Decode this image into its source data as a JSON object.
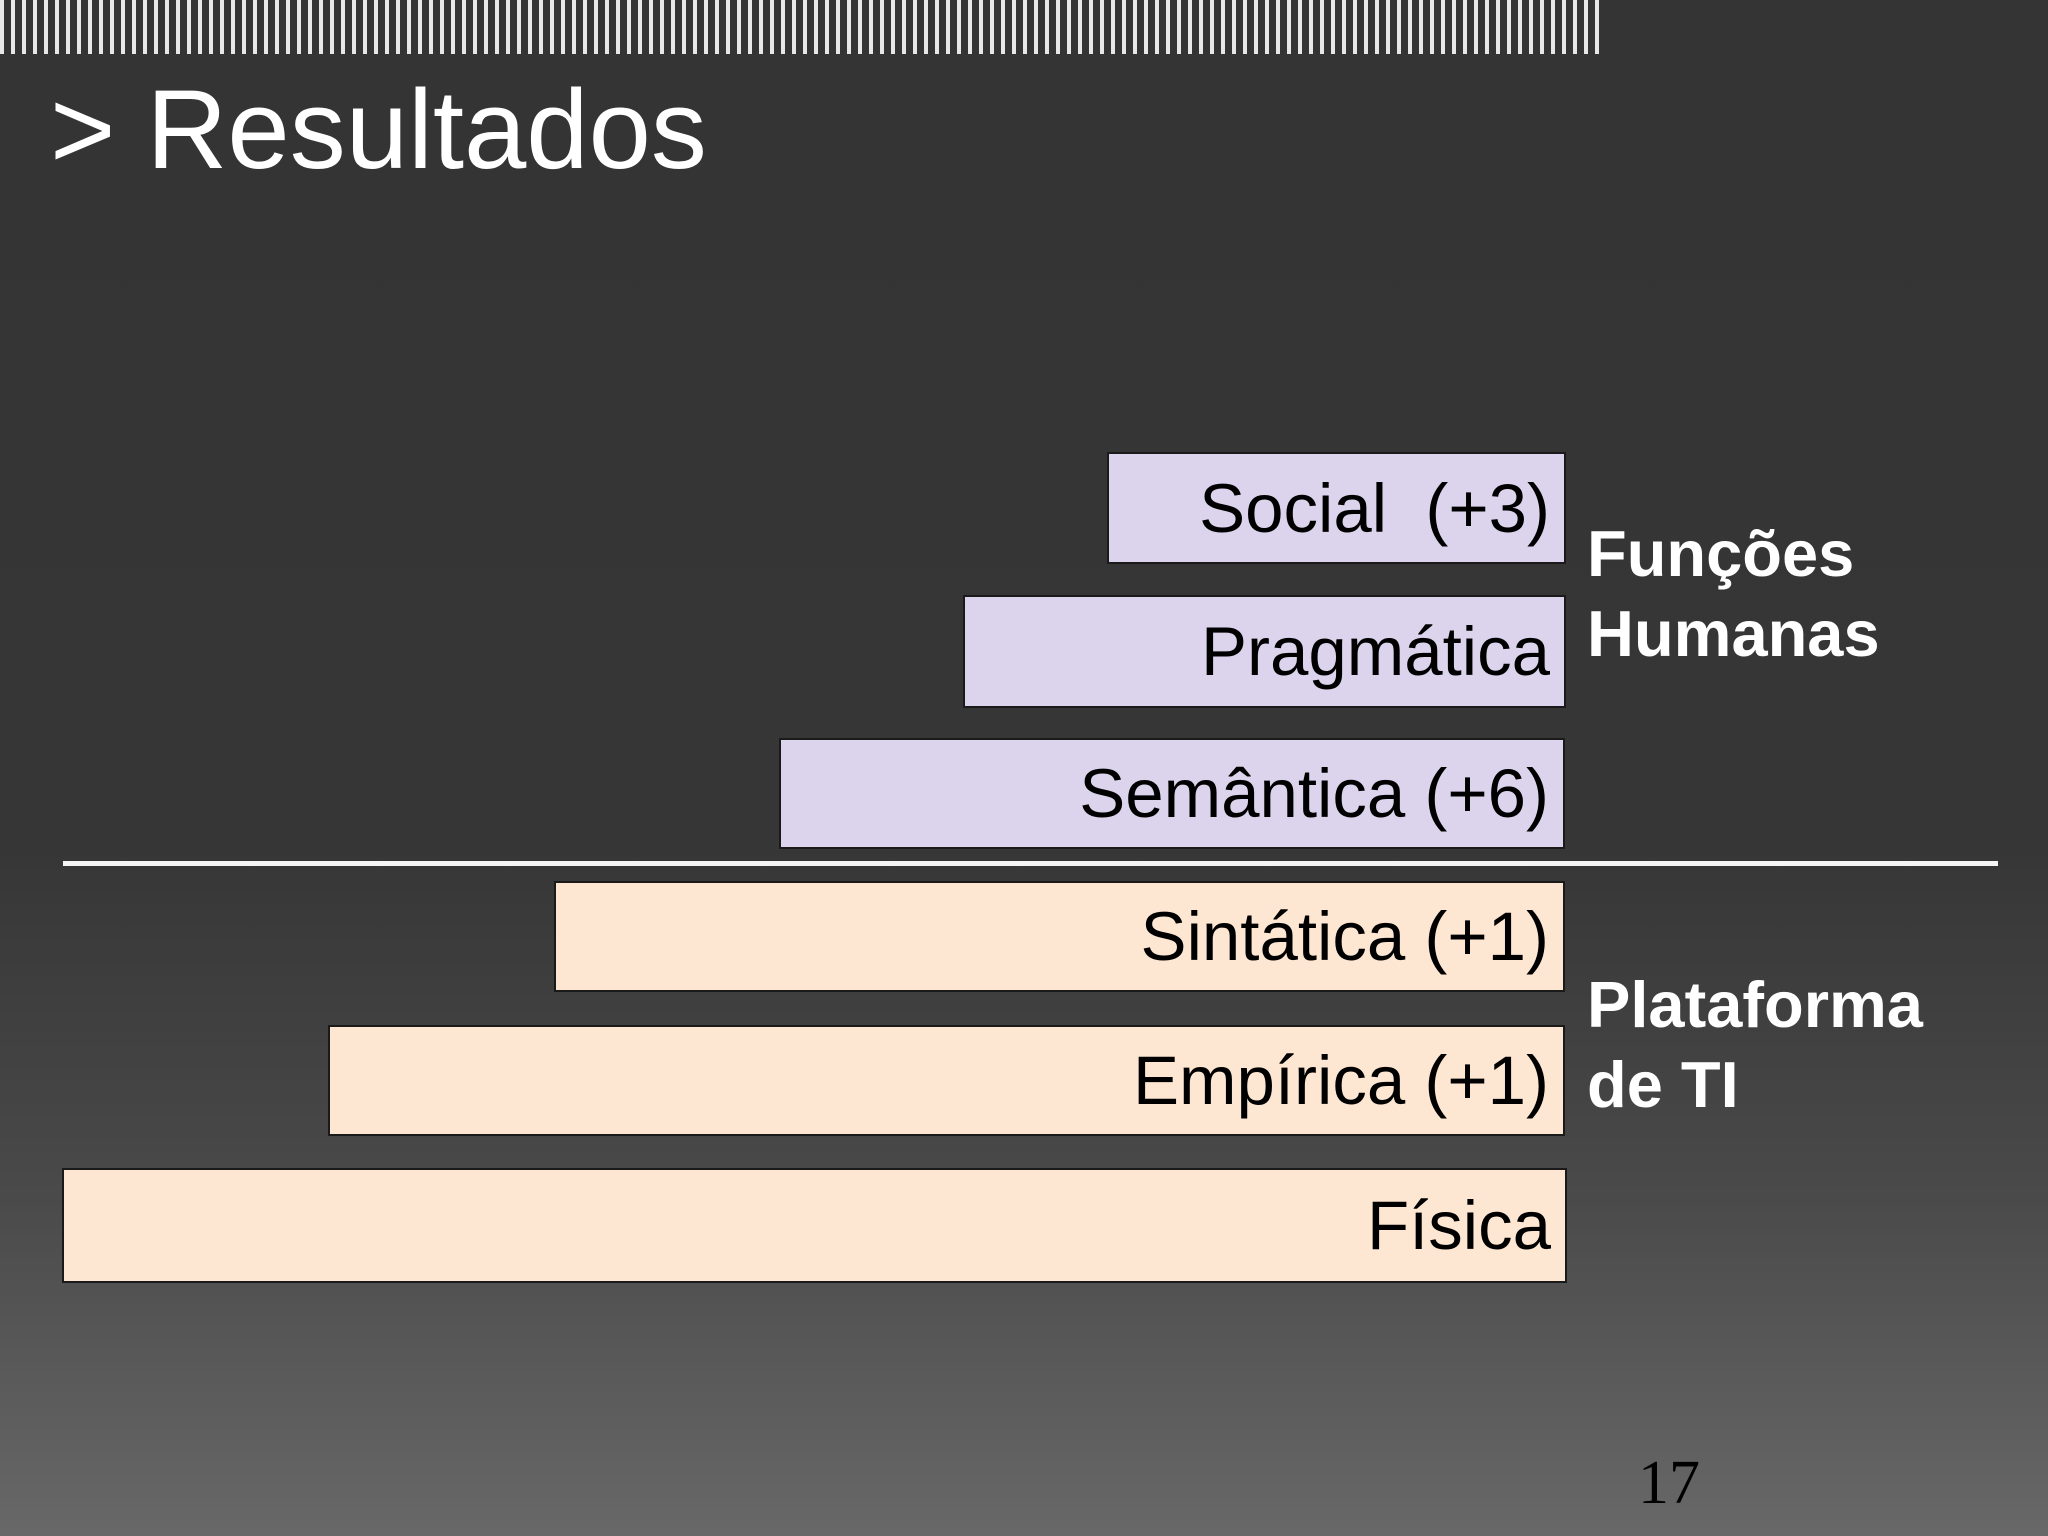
{
  "slide": {
    "title": "> Resultados",
    "page_number": "17"
  },
  "layers": {
    "social": "Social  (+3)",
    "pragmatica": "Pragmática",
    "semantica": "Semântica (+6)",
    "sintatica": "Sintática (+1)",
    "empirica": "Empírica (+1)",
    "fisica": "Física"
  },
  "groups": {
    "human_functions": {
      "line1": "Funções",
      "line2": "Humanas"
    },
    "it_platform": {
      "line1": "Plataforma",
      "line2": "de TI"
    }
  },
  "colors": {
    "background": "#343434",
    "human_layer_fill": "#dcd3ec",
    "platform_layer_fill": "#fde6d2",
    "divider": "#f5f5f5",
    "text_light": "#ffffff"
  }
}
